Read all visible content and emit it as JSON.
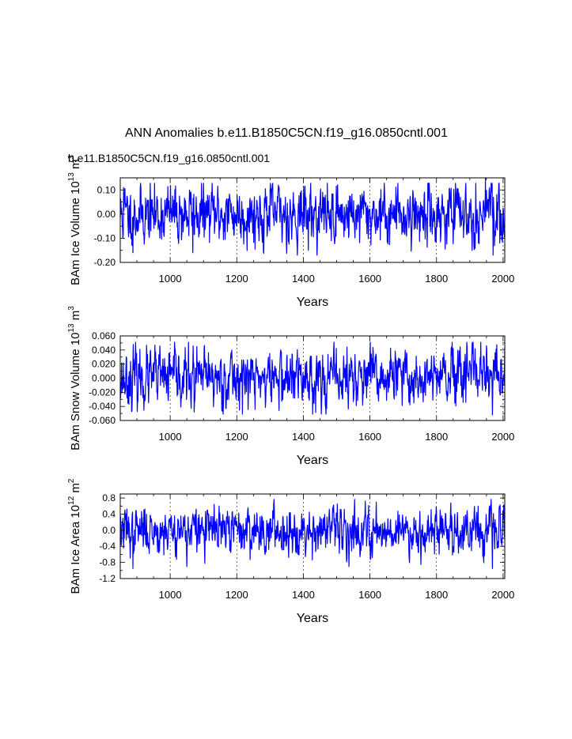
{
  "title": "ANN Anomalies b.e11.B1850C5CN.f19_g16.0850cntl.001",
  "case_label": "b.e11.B1850C5CN.f19_g16.0850cntl.001",
  "colors": {
    "line": "#0000ff",
    "case_label": "#0000ff",
    "axis": "#000000",
    "grid": "#000000"
  },
  "chart_data": [
    {
      "type": "line",
      "title": "",
      "xlabel": "Years",
      "ylabel": "BAm Ice Volume 10",
      "ylabel_exp": "13",
      "ylabel_unit": " m",
      "ylabel_unit_exp": "3",
      "xlim": [
        850,
        2005
      ],
      "ylim": [
        -0.2,
        0.15
      ],
      "xticks": [
        1000,
        1200,
        1400,
        1600,
        1800,
        2000
      ],
      "xtick_labels": [
        "1000",
        "1200",
        "1400",
        "1600",
        "1800",
        "2000"
      ],
      "yticks": [
        -0.2,
        -0.1,
        0.0,
        0.1
      ],
      "ytick_labels": [
        "-0.20",
        "-0.10",
        "0.00",
        "0.10"
      ],
      "grid": "vertical-dashed",
      "series": [
        {
          "name": "BAm Ice Volume",
          "amplitude": 0.06,
          "extremes": [
            [
              860,
              0.11
            ],
            [
              888,
              -0.16
            ],
            [
              1068,
              -0.16
            ],
            [
              1947,
              0.15
            ],
            [
              1970,
              -0.17
            ],
            [
              1990,
              -0.12
            ]
          ],
          "seed": 11
        }
      ]
    },
    {
      "type": "line",
      "title": "",
      "xlabel": "Years",
      "ylabel": "BAm Snow Volume 10",
      "ylabel_exp": "13",
      "ylabel_unit": " m",
      "ylabel_unit_exp": "3",
      "xlim": [
        850,
        2005
      ],
      "ylim": [
        -0.06,
        0.06
      ],
      "xticks": [
        1000,
        1200,
        1400,
        1600,
        1800,
        2000
      ],
      "xtick_labels": [
        "1000",
        "1200",
        "1400",
        "1600",
        "1800",
        "2000"
      ],
      "yticks": [
        -0.06,
        -0.04,
        -0.02,
        0.0,
        0.02,
        0.04,
        0.06
      ],
      "ytick_labels": [
        "-0.060",
        "-0.040",
        "-0.020",
        "0.000",
        "0.020",
        "0.040",
        "0.060"
      ],
      "grid": "vertical-dashed",
      "series": [
        {
          "name": "BAm Snow Volume",
          "amplitude": 0.02,
          "extremes": [
            [
              885,
              -0.047
            ],
            [
              1072,
              -0.048
            ],
            [
              1950,
              0.046
            ],
            [
              1968,
              -0.052
            ],
            [
              1845,
              0.044
            ]
          ],
          "seed": 23
        }
      ]
    },
    {
      "type": "line",
      "title": "",
      "xlabel": "Years",
      "ylabel": "BAm Ice Area 10",
      "ylabel_exp": "12",
      "ylabel_unit": " m",
      "ylabel_unit_exp": "2",
      "xlim": [
        850,
        2005
      ],
      "ylim": [
        -1.2,
        0.9
      ],
      "xticks": [
        1000,
        1200,
        1400,
        1600,
        1800,
        2000
      ],
      "xtick_labels": [
        "1000",
        "1200",
        "1400",
        "1600",
        "1800",
        "2000"
      ],
      "yticks": [
        -1.2,
        -0.8,
        -0.4,
        0.0,
        0.4,
        0.8
      ],
      "ytick_labels": [
        "-1.2",
        "-0.8",
        "-0.4",
        "0.0",
        "0.4",
        "0.8"
      ],
      "grid": "vertical-dashed",
      "series": [
        {
          "name": "BAm Ice Area",
          "amplitude": 0.28,
          "extremes": [
            [
              888,
              -0.95
            ],
            [
              1050,
              -0.9
            ],
            [
              1843,
              0.68
            ],
            [
              1968,
              -0.95
            ],
            [
              1925,
              0.6
            ]
          ],
          "seed": 37
        }
      ]
    }
  ]
}
